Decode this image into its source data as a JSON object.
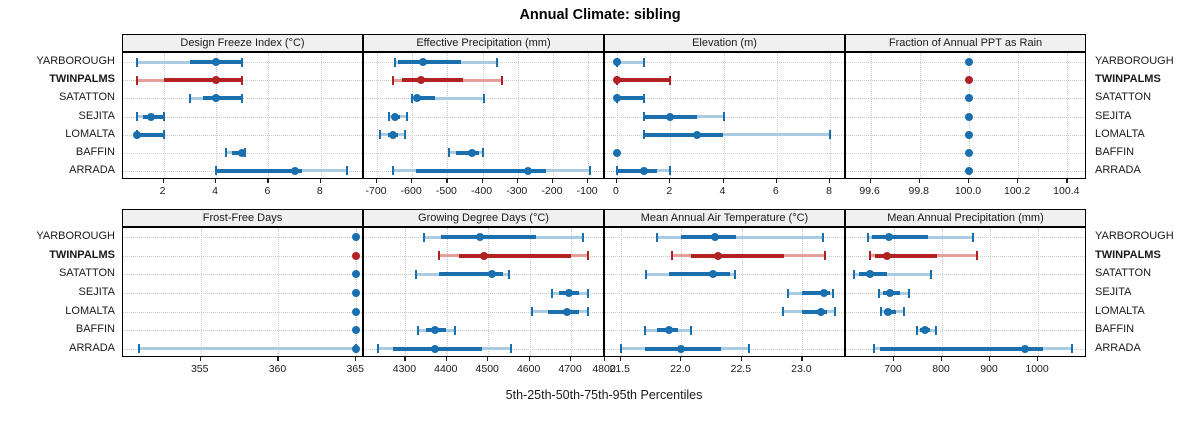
{
  "title": "Annual Climate: sibling",
  "caption": "5th-25th-50th-75th-95th Percentiles",
  "stations": [
    "YARBOROUGH",
    "TWINPALMS",
    "SATATTON",
    "SEJITA",
    "LOMALTA",
    "BAFFIN",
    "ARRADA"
  ],
  "highlight_station": "TWINPALMS",
  "colors": {
    "blue": "#1a6faf",
    "blue_light": "#a9cce3",
    "red": "#b22222",
    "red_light": "#e4a09b",
    "header_bg": "#f0f0f0",
    "grid": "#cbcbcb",
    "border": "#000000",
    "tick": "#222222"
  },
  "chart_data": {
    "type": "scatter",
    "subtype": "dot-plot-with-percentile-whiskers",
    "title": "Annual Climate: sibling",
    "caption": "5th-25th-50th-75th-95th Percentiles",
    "percentile_levels": [
      5,
      25,
      50,
      75,
      95
    ],
    "station_order": [
      "YARBOROUGH",
      "TWINPALMS",
      "SATATTON",
      "SEJITA",
      "LOMALTA",
      "BAFFIN",
      "ARRADA"
    ],
    "grid": "dotted",
    "layout": "2 rows x 4 columns of panels, shared station y-axis, labels on both sides",
    "panels": [
      {
        "title": "Design Freeze Index (°C)",
        "range": [
          0.45,
          9.65
        ],
        "tick_values": [
          2,
          4,
          6,
          8
        ],
        "tick_labels": [
          "2",
          "4",
          "6",
          "8"
        ],
        "rows": [
          [
            1,
            3,
            4,
            5,
            5
          ],
          [
            1,
            2,
            4,
            5,
            5
          ],
          [
            3,
            3.5,
            4,
            5,
            5
          ],
          [
            1,
            1.2,
            1.5,
            2,
            2
          ],
          [
            1,
            1,
            1,
            2,
            2
          ],
          [
            4.4,
            4.6,
            5,
            5.1,
            5.1
          ],
          [
            4,
            4,
            7,
            7.3,
            9
          ]
        ]
      },
      {
        "title": "Effective Precipitation (mm)",
        "range": [
          -737,
          -52
        ],
        "tick_values": [
          -700,
          -600,
          -500,
          -400,
          -300,
          -200,
          -100
        ],
        "tick_labels": [
          "-700",
          "-600",
          "-500",
          "-400",
          "-300",
          "-200",
          "-100"
        ],
        "rows": [
          [
            -650,
            -640,
            -570,
            -460,
            -360
          ],
          [
            -655,
            -630,
            -575,
            -455,
            -345
          ],
          [
            -600,
            -590,
            -585,
            -535,
            -395
          ],
          [
            -665,
            -655,
            -650,
            -635,
            -615
          ],
          [
            -692,
            -670,
            -655,
            -640,
            -620
          ],
          [
            -495,
            -475,
            -430,
            -410,
            -398
          ],
          [
            -655,
            -590,
            -270,
            -220,
            -95
          ]
        ]
      },
      {
        "title": "Elevation (m)",
        "range": [
          -0.45,
          8.6
        ],
        "tick_values": [
          0,
          2,
          4,
          6,
          8
        ],
        "tick_labels": [
          "0",
          "2",
          "4",
          "6",
          "8"
        ],
        "rows": [
          [
            0,
            0,
            0,
            0,
            1
          ],
          [
            0,
            0,
            0,
            2,
            2
          ],
          [
            0,
            0,
            0,
            1,
            1
          ],
          [
            1,
            1,
            2,
            3,
            4
          ],
          [
            1,
            1,
            3,
            4,
            8
          ],
          [
            0,
            0,
            0,
            0,
            0
          ],
          [
            0,
            0,
            1,
            1.5,
            2
          ]
        ]
      },
      {
        "title": "Fraction of Annual PPT as Rain",
        "range": [
          99.5,
          100.48
        ],
        "tick_values": [
          99.6,
          99.8,
          100.0,
          100.2,
          100.4
        ],
        "tick_labels": [
          "99.6",
          "99.8",
          "100.0",
          "100.2",
          "100.4"
        ],
        "rows": [
          [
            100,
            100,
            100,
            100,
            100
          ],
          [
            100,
            100,
            100,
            100,
            100
          ],
          [
            100,
            100,
            100,
            100,
            100
          ],
          [
            100,
            100,
            100,
            100,
            100
          ],
          [
            100,
            100,
            100,
            100,
            100
          ],
          [
            100,
            100,
            100,
            100,
            100
          ],
          [
            100,
            100,
            100,
            100,
            100
          ]
        ]
      },
      {
        "title": "Frost-Free Days",
        "range": [
          350,
          365.5
        ],
        "tick_values": [
          355,
          360,
          365
        ],
        "tick_labels": [
          "355",
          "360",
          "365"
        ],
        "rows": [
          [
            365,
            365,
            365,
            365,
            365
          ],
          [
            365,
            365,
            365,
            365,
            365
          ],
          [
            365,
            365,
            365,
            365,
            365
          ],
          [
            365,
            365,
            365,
            365,
            365
          ],
          [
            365,
            365,
            365,
            365,
            365
          ],
          [
            365,
            365,
            365,
            365,
            365
          ],
          [
            351,
            365,
            365,
            365,
            365
          ]
        ]
      },
      {
        "title": "Growing Degree Days (°C)",
        "range": [
          4200,
          4782
        ],
        "tick_values": [
          4300,
          4400,
          4500,
          4600,
          4700,
          4800
        ],
        "tick_labels": [
          "4300",
          "4400",
          "4500",
          "4600",
          "4700",
          "4800"
        ],
        "rows": [
          [
            4345,
            4385,
            4480,
            4615,
            4730
          ],
          [
            4380,
            4430,
            4490,
            4700,
            4740
          ],
          [
            4325,
            4380,
            4510,
            4535,
            4550
          ],
          [
            4655,
            4670,
            4695,
            4720,
            4742
          ],
          [
            4605,
            4645,
            4690,
            4720,
            4740
          ],
          [
            4330,
            4350,
            4372,
            4398,
            4420
          ],
          [
            4235,
            4270,
            4372,
            4485,
            4555
          ]
        ]
      },
      {
        "title": "Mean Annual Air Temperature (°C)",
        "range": [
          21.37,
          23.36
        ],
        "tick_values": [
          21.5,
          22.0,
          22.5,
          23.0
        ],
        "tick_labels": [
          "21.5",
          "22.0",
          "22.5",
          "23.0"
        ],
        "rows": [
          [
            21.8,
            22.0,
            22.28,
            22.45,
            23.17
          ],
          [
            21.92,
            22.08,
            22.3,
            22.85,
            23.19
          ],
          [
            21.71,
            21.9,
            22.26,
            22.4,
            22.44
          ],
          [
            22.88,
            23.0,
            23.18,
            23.23,
            23.25
          ],
          [
            22.84,
            23.0,
            23.15,
            23.2,
            23.27
          ],
          [
            21.7,
            21.8,
            21.9,
            21.97,
            22.08
          ],
          [
            21.5,
            21.7,
            22.0,
            22.33,
            22.56
          ]
        ]
      },
      {
        "title": "Mean Annual Precipitation (mm)",
        "range": [
          600,
          1102
        ],
        "tick_values": [
          700,
          800,
          900,
          1000
        ],
        "tick_labels": [
          "700",
          "800",
          "900",
          "1000"
        ],
        "rows": [
          [
            645,
            655,
            690,
            770,
            864
          ],
          [
            650,
            660,
            685,
            790,
            872
          ],
          [
            617,
            628,
            650,
            685,
            778
          ],
          [
            668,
            678,
            692,
            712,
            731
          ],
          [
            672,
            680,
            688,
            705,
            721
          ],
          [
            748,
            755,
            764,
            775,
            787
          ],
          [
            659,
            670,
            973,
            1010,
            1070
          ]
        ]
      }
    ]
  }
}
